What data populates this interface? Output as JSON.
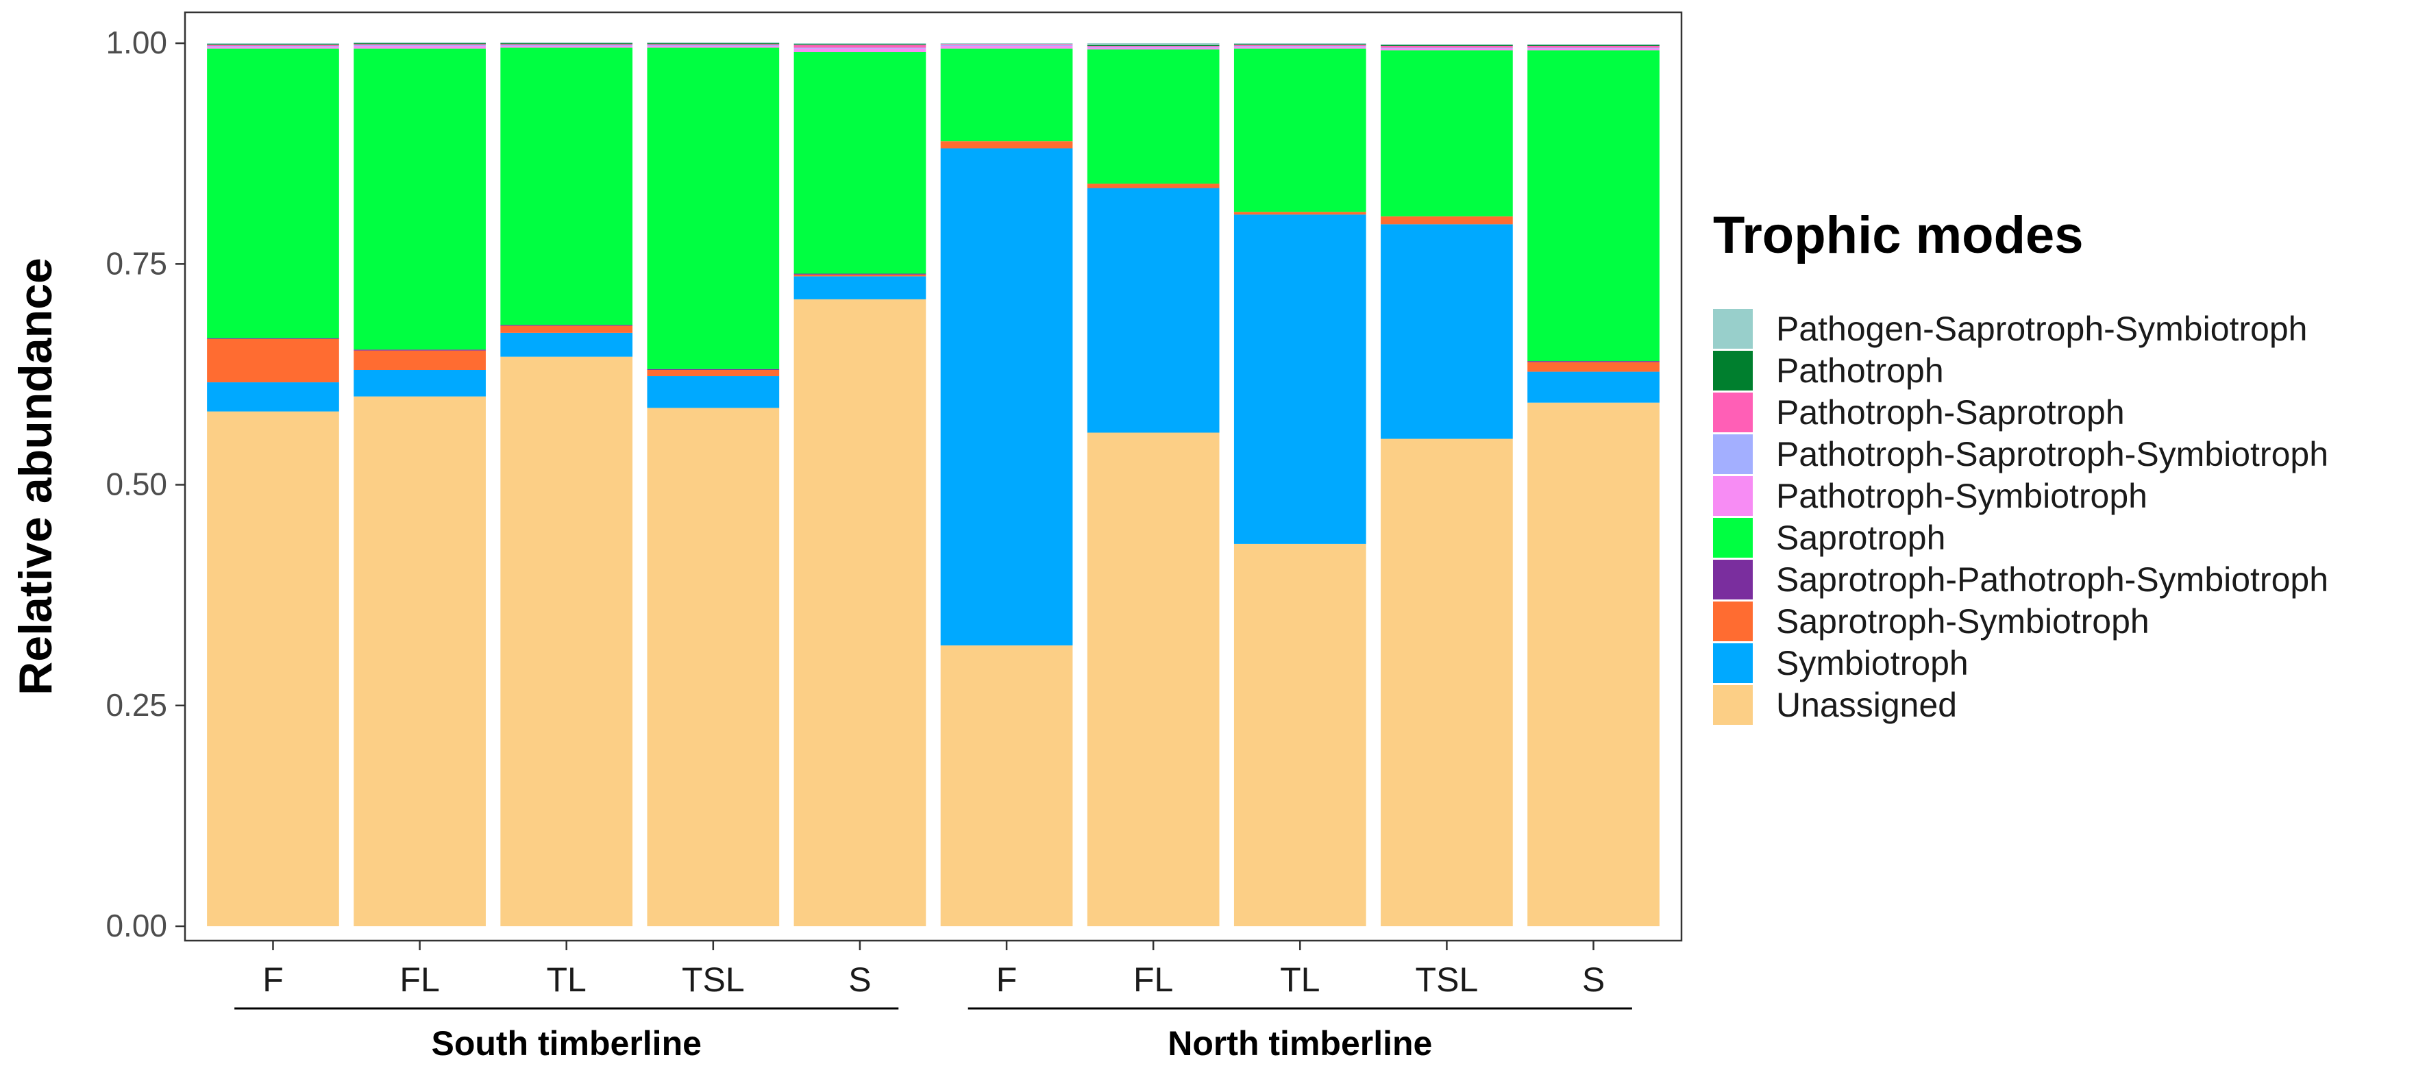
{
  "chart_data": {
    "type": "bar",
    "stacked": true,
    "ylabel": "Relative abundance",
    "xlabel": "",
    "ylim": [
      0,
      1
    ],
    "yticks": [
      "0.00",
      "0.25",
      "0.50",
      "0.75",
      "1.00"
    ],
    "categories": [
      "F",
      "FL",
      "TL",
      "TSL",
      "S",
      "F",
      "FL",
      "TL",
      "TSL",
      "S"
    ],
    "groups": [
      {
        "label": "South timberline",
        "members": [
          0,
          1,
          2,
          3,
          4
        ]
      },
      {
        "label": "North timberline",
        "members": [
          5,
          6,
          7,
          8,
          9
        ]
      }
    ],
    "legend": {
      "title": "Trophic modes",
      "position": "right"
    },
    "grid": false,
    "series": [
      {
        "name": "Unassigned",
        "color": "#FCCF86",
        "values": [
          0.583,
          0.6,
          0.645,
          0.587,
          0.71,
          0.318,
          0.559,
          0.433,
          0.552,
          0.593
        ]
      },
      {
        "name": "Symbiotroph",
        "color": "#00A9FF",
        "values": [
          0.033,
          0.03,
          0.027,
          0.036,
          0.026,
          0.563,
          0.277,
          0.373,
          0.243,
          0.035
        ]
      },
      {
        "name": "Saprotroph-Symbiotroph",
        "color": "#FF6C31",
        "values": [
          0.049,
          0.022,
          0.008,
          0.007,
          0.002,
          0.008,
          0.005,
          0.003,
          0.009,
          0.011
        ]
      },
      {
        "name": "Saprotroph-Pathotroph-Symbiotroph",
        "color": "#7A2E9E",
        "values": [
          0.001,
          0.001,
          0.001,
          0.001,
          0.001,
          0.0,
          0.0,
          0.0,
          0.0,
          0.001
        ]
      },
      {
        "name": "Saprotroph",
        "color": "#00FF41",
        "values": [
          0.328,
          0.341,
          0.314,
          0.364,
          0.251,
          0.105,
          0.152,
          0.185,
          0.188,
          0.352
        ]
      },
      {
        "name": "Pathotroph-Symbiotroph",
        "color": "#F78CF4",
        "values": [
          0.002,
          0.003,
          0.002,
          0.002,
          0.004,
          0.003,
          0.002,
          0.002,
          0.002,
          0.002
        ]
      },
      {
        "name": "Pathotroph-Saprotroph-Symbiotroph",
        "color": "#A3AFFF",
        "values": [
          0.001,
          0.001,
          0.001,
          0.001,
          0.001,
          0.001,
          0.001,
          0.001,
          0.001,
          0.001
        ]
      },
      {
        "name": "Pathotroph-Saprotroph",
        "color": "#FF5FB6",
        "values": [
          0.001,
          0.001,
          0.001,
          0.001,
          0.003,
          0.001,
          0.001,
          0.001,
          0.002,
          0.002
        ]
      },
      {
        "name": "Pathotroph",
        "color": "#007F2E",
        "values": [
          0.001,
          0.001,
          0.001,
          0.001,
          0.001,
          0.0,
          0.001,
          0.001,
          0.001,
          0.001
        ]
      },
      {
        "name": "Pathogen-Saprotroph-Symbiotroph",
        "color": "#98CFCB",
        "values": [
          0.001,
          0.001,
          0.001,
          0.001,
          0.001,
          0.001,
          0.002,
          0.001,
          0.001,
          0.001
        ]
      }
    ]
  }
}
